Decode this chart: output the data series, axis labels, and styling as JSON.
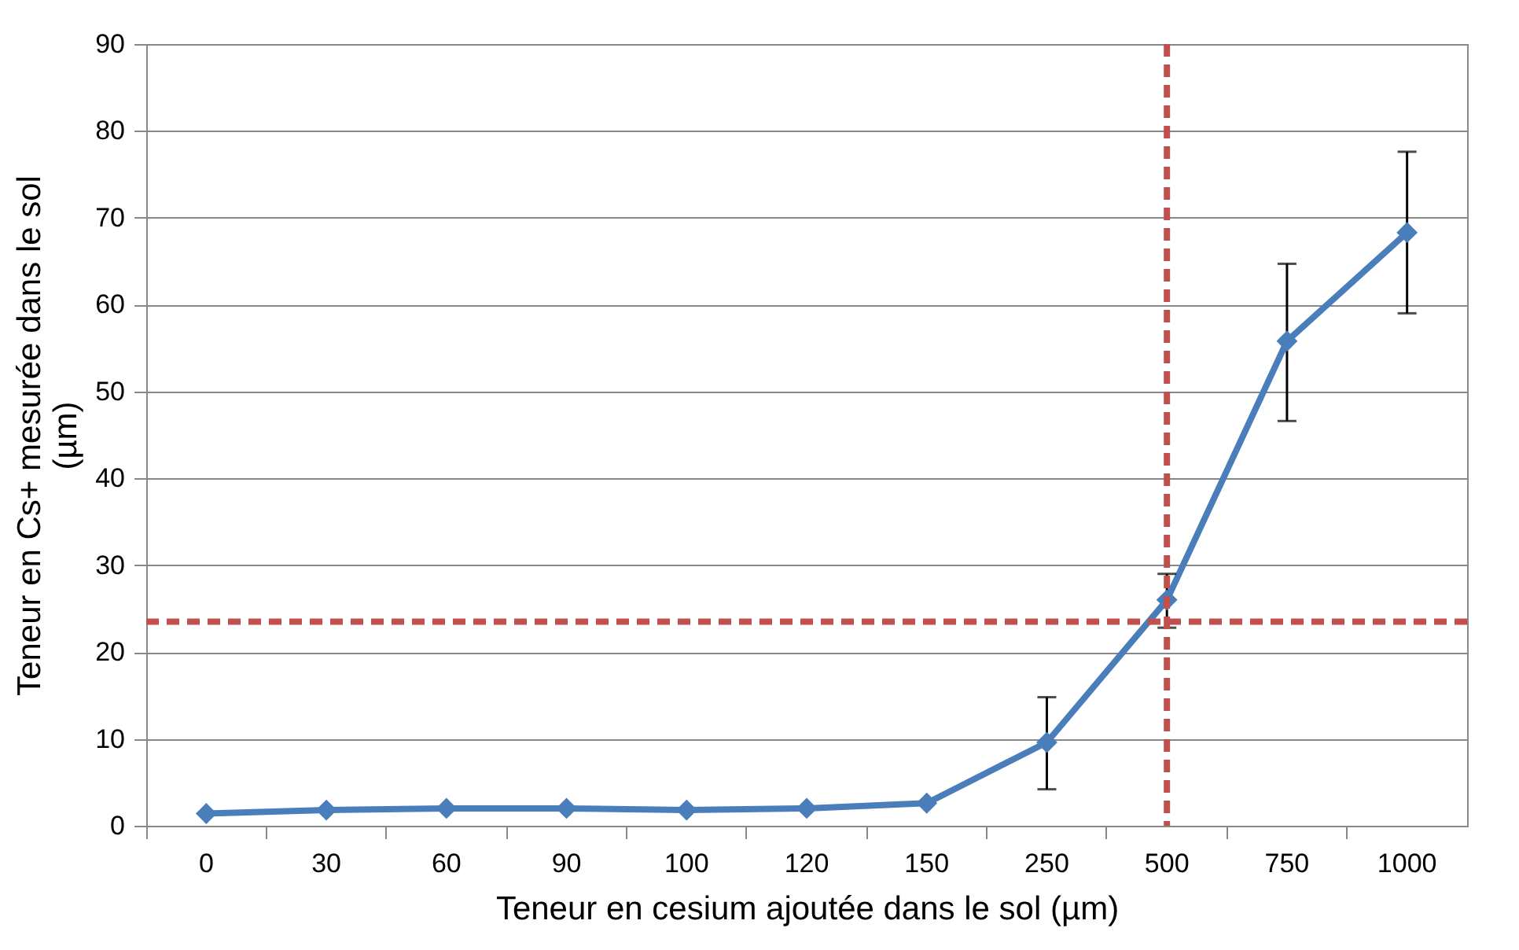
{
  "chart_data": {
    "type": "line",
    "xlabel": "Teneur en cesium ajoutée dans le sol (µm)",
    "ylabel": "Teneur en Cs+ mesurée dans le sol (µm)",
    "categories": [
      "0",
      "30",
      "60",
      "90",
      "100",
      "120",
      "150",
      "250",
      "500",
      "750",
      "1000"
    ],
    "series": [
      {
        "color": "#4a7ebb",
        "values": [
          1.4,
          1.8,
          2,
          2,
          1.8,
          2,
          2.6,
          9.6,
          26,
          55.8,
          68.3
        ],
        "errors": [
          null,
          null,
          null,
          null,
          null,
          null,
          null,
          [
            4.2,
            14.8
          ],
          [
            22.8,
            29
          ],
          [
            46.6,
            64.7
          ],
          [
            59,
            77.6
          ]
        ]
      }
    ],
    "ylim": [
      0,
      90
    ],
    "yticks": [
      0,
      10,
      20,
      30,
      40,
      50,
      60,
      70,
      80,
      90
    ],
    "grid": "y",
    "marker": "diamond",
    "line_style": "solid",
    "ref_lines": [
      {
        "axis": "y",
        "value": 23.5,
        "color": "#c0504d",
        "line_style": "dashed"
      },
      {
        "axis": "x",
        "value": "500",
        "color": "#c0504d",
        "line_style": "dashed"
      }
    ]
  }
}
